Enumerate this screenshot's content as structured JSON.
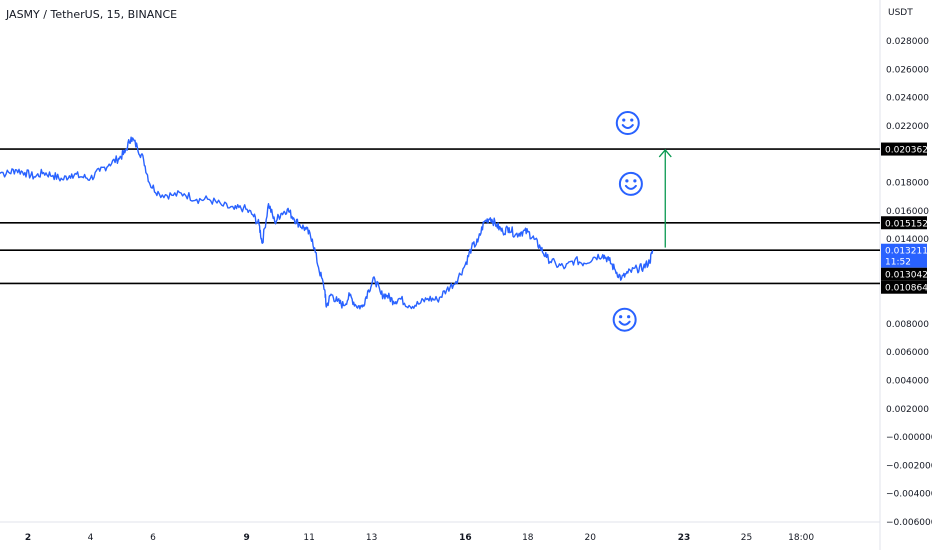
{
  "title": "JASMY / TetherUS, 15, BINANCE",
  "currency_label": "USDT",
  "colors": {
    "price_line": "#2962ff",
    "level_line": "#000000",
    "arrow": "#089950",
    "smiley": "#2962ff",
    "current_tag_bg": "#2962ff",
    "level_tag_bg": "#000000"
  },
  "chart_data": {
    "type": "line",
    "y_axis": {
      "side": "right",
      "range": [
        -0.006,
        0.029
      ],
      "ticks": [
        "0.028000",
        "0.026000",
        "0.024000",
        "0.022000",
        "0.018000",
        "0.016000",
        "0.014000",
        "0.008000",
        "0.006000",
        "0.004000",
        "0.002000",
        "−0.000000",
        "−0.002000",
        "−0.004000",
        "−0.006000"
      ],
      "tick_values": [
        0.028,
        0.026,
        0.024,
        0.022,
        0.018,
        0.016,
        0.014,
        0.008,
        0.006,
        0.004,
        0.002,
        0.0,
        -0.002,
        -0.004,
        -0.006
      ]
    },
    "x_axis": {
      "ticks": [
        "2",
        "4",
        "6",
        "9",
        "11",
        "13",
        "16",
        "18",
        "20",
        "23",
        "25",
        "18:00"
      ],
      "tick_days": [
        2,
        4,
        6,
        9,
        11,
        13,
        16,
        18,
        20,
        23,
        25,
        26.75
      ],
      "bold_ticks": [
        "2",
        "9",
        "16",
        "23"
      ]
    },
    "series": [
      {
        "x": [
          0.9,
          1.3,
          1.6,
          1.9,
          2.2,
          2.5,
          2.8,
          3.1,
          3.4,
          3.7,
          4.0,
          4.3,
          4.6,
          4.9,
          5.1,
          5.3,
          5.5,
          5.7,
          5.9,
          6.2,
          6.6,
          7.0,
          7.4,
          7.8,
          8.2,
          8.6,
          8.9,
          9.2,
          9.4,
          9.5,
          9.7,
          9.9,
          10.1,
          10.3,
          10.5,
          10.7,
          10.9,
          11.1,
          11.3,
          11.5,
          11.55,
          11.7,
          11.9,
          12.1,
          12.3,
          12.5,
          12.7,
          12.9,
          13.1,
          13.3,
          13.5,
          13.7,
          13.9,
          14.2,
          14.5,
          14.8,
          15.1,
          15.4,
          15.7,
          16.0,
          16.2,
          16.4,
          16.6,
          16.8,
          17.0,
          17.2,
          17.4,
          17.6,
          17.8,
          18.0,
          18.2,
          18.4,
          18.6,
          18.9,
          19.2,
          19.5,
          19.8,
          20.1,
          20.4,
          20.6,
          20.8,
          21.0,
          21.2,
          21.5,
          21.7,
          21.9,
          22.0
        ],
        "y": [
          0.019,
          0.0186,
          0.0189,
          0.0187,
          0.0184,
          0.0187,
          0.0185,
          0.0182,
          0.0186,
          0.0184,
          0.0183,
          0.0188,
          0.0193,
          0.0197,
          0.0201,
          0.0212,
          0.0205,
          0.0196,
          0.0179,
          0.0172,
          0.0171,
          0.0172,
          0.0168,
          0.0168,
          0.0164,
          0.0161,
          0.0162,
          0.0157,
          0.015,
          0.0137,
          0.0165,
          0.0152,
          0.0158,
          0.0161,
          0.0155,
          0.015,
          0.0147,
          0.014,
          0.012,
          0.0104,
          0.0092,
          0.0101,
          0.0096,
          0.0093,
          0.01,
          0.0093,
          0.0092,
          0.0104,
          0.0112,
          0.0101,
          0.01,
          0.0096,
          0.0098,
          0.0093,
          0.0094,
          0.0098,
          0.0097,
          0.0104,
          0.011,
          0.0122,
          0.0134,
          0.0138,
          0.0152,
          0.0155,
          0.015,
          0.0145,
          0.0148,
          0.0143,
          0.0145,
          0.0145,
          0.014,
          0.0134,
          0.0127,
          0.0122,
          0.012,
          0.0125,
          0.0123,
          0.0127,
          0.0129,
          0.0125,
          0.0118,
          0.0112,
          0.0116,
          0.0119,
          0.012,
          0.0124,
          0.0132
        ]
      }
    ],
    "horizontal_levels": [
      0.02036,
      0.01515,
      0.01321,
      0.01086
    ],
    "price_tags": [
      {
        "label": "0.020362",
        "value": 0.020362,
        "kind": "level"
      },
      {
        "label": "0.015152",
        "value": 0.015152,
        "kind": "level"
      },
      {
        "label": "0.013211",
        "sublabel": "11:52",
        "value": 0.013211,
        "kind": "current"
      },
      {
        "label": "0.013042",
        "value": 0.013042,
        "kind": "level"
      },
      {
        "label": "0.010864",
        "value": 0.010864,
        "kind": "level"
      }
    ],
    "arrow": {
      "x": 22.4,
      "from": 0.0134,
      "to": 0.0203
    },
    "annotations": [
      {
        "type": "smiley",
        "x": 21.2,
        "y": 0.0222
      },
      {
        "type": "smiley",
        "x": 21.3,
        "y": 0.0179
      },
      {
        "type": "smiley",
        "x": 21.1,
        "y": 0.0083
      }
    ]
  }
}
